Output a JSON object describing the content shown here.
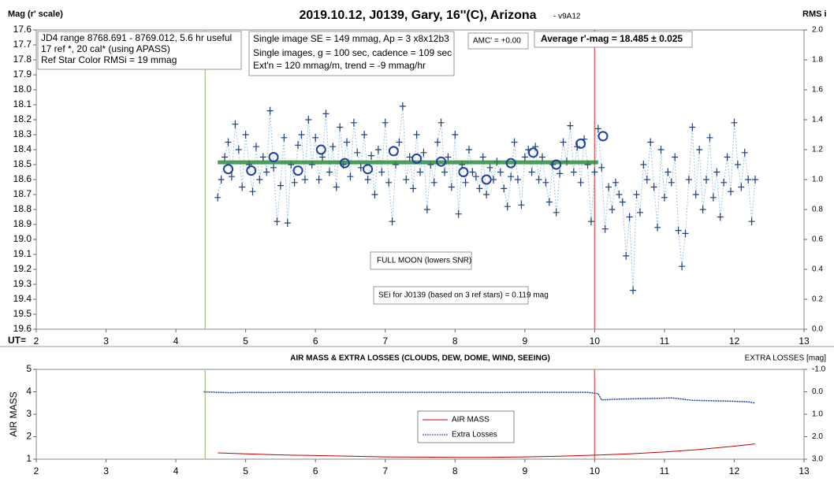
{
  "chart_data": [
    {
      "type": "scatter",
      "title": "2019.10.12, J0139, Gary, 16''(C), Arizona",
      "subtitle": "- v9A12",
      "y_label": "Mag (r' scale)",
      "y2_label": "RMS i",
      "x_label": "UT=",
      "xlim": [
        2,
        13
      ],
      "xticks": [
        2,
        3,
        4,
        5,
        6,
        7,
        8,
        9,
        10,
        11,
        12,
        13
      ],
      "ylim": [
        19.6,
        17.6
      ],
      "yticks": [
        17.6,
        17.7,
        17.8,
        17.9,
        {
          "value": 18.0,
          "label": "18.0"
        },
        18.1,
        18.2,
        18.3,
        18.4,
        18.5,
        18.6,
        18.7,
        18.8,
        18.9,
        {
          "value": 19.0,
          "label": "19.0"
        },
        19.1,
        19.2,
        19.3,
        19.4,
        19.5,
        19.6
      ],
      "y2lim": [
        0,
        2
      ],
      "y2ticks": [
        {
          "value": 0,
          "label": "0.0"
        },
        0.2,
        0.4,
        0.6,
        0.8,
        {
          "value": 1,
          "label": "1.0"
        },
        1.2,
        1.4,
        1.6,
        1.8,
        {
          "value": 2,
          "label": "2.0"
        }
      ],
      "color": "#1f3f7f",
      "line_color": "#9dc3e6",
      "x": [
        4.6,
        4.65,
        4.7,
        4.75,
        4.8,
        4.85,
        4.9,
        4.95,
        5.0,
        5.05,
        5.1,
        5.15,
        5.2,
        5.25,
        5.3,
        5.35,
        5.4,
        5.45,
        5.5,
        5.55,
        5.6,
        5.65,
        5.7,
        5.75,
        5.8,
        5.85,
        5.9,
        5.95,
        6.0,
        6.05,
        6.1,
        6.15,
        6.2,
        6.25,
        6.3,
        6.35,
        6.4,
        6.45,
        6.5,
        6.55,
        6.6,
        6.65,
        6.7,
        6.75,
        6.8,
        6.85,
        6.9,
        6.95,
        7.0,
        7.05,
        7.1,
        7.15,
        7.2,
        7.25,
        7.3,
        7.35,
        7.4,
        7.45,
        7.5,
        7.55,
        7.6,
        7.65,
        7.7,
        7.75,
        7.8,
        7.85,
        7.9,
        7.95,
        8.0,
        8.05,
        8.1,
        8.15,
        8.2,
        8.25,
        8.3,
        8.35,
        8.4,
        8.45,
        8.5,
        8.55,
        8.6,
        8.65,
        8.7,
        8.75,
        8.8,
        8.85,
        8.9,
        8.95,
        9.0,
        9.05,
        9.1,
        9.15,
        9.2,
        9.25,
        9.3,
        9.35,
        9.4,
        9.45,
        9.5,
        9.55,
        9.6,
        9.65,
        9.7,
        9.75,
        9.8,
        9.85,
        9.9,
        9.95,
        10.0,
        10.05,
        10.1,
        10.15,
        10.2,
        10.25,
        10.3,
        10.35,
        10.4,
        10.45,
        10.5,
        10.55,
        10.6,
        10.65,
        10.7,
        10.75,
        10.8,
        10.85,
        10.9,
        10.95,
        11.0,
        11.05,
        11.1,
        11.15,
        11.2,
        11.25,
        11.3,
        11.35,
        11.4,
        11.45,
        11.5,
        11.55,
        11.6,
        11.65,
        11.7,
        11.75,
        11.8,
        11.85,
        11.9,
        11.95,
        12.0,
        12.05,
        12.1,
        12.15,
        12.2,
        12.25,
        12.3
      ],
      "values": [
        18.72,
        18.6,
        18.45,
        18.35,
        18.58,
        18.23,
        18.4,
        18.65,
        18.3,
        18.5,
        18.68,
        18.38,
        18.6,
        18.45,
        18.55,
        18.14,
        18.52,
        18.88,
        18.64,
        18.32,
        18.89,
        18.5,
        18.62,
        18.37,
        18.3,
        18.6,
        18.2,
        18.5,
        18.32,
        18.6,
        18.45,
        18.16,
        18.55,
        18.38,
        18.65,
        18.25,
        18.5,
        18.35,
        18.58,
        18.22,
        18.42,
        18.52,
        18.3,
        18.6,
        18.44,
        18.7,
        18.4,
        18.55,
        18.22,
        18.62,
        18.88,
        18.5,
        18.35,
        18.11,
        18.6,
        18.45,
        18.66,
        18.3,
        18.55,
        18.42,
        18.8,
        18.5,
        18.62,
        18.35,
        18.22,
        18.55,
        18.45,
        18.65,
        18.3,
        18.83,
        18.5,
        18.62,
        18.4,
        18.55,
        18.58,
        18.66,
        18.45,
        18.7,
        18.52,
        18.6,
        18.48,
        18.55,
        18.66,
        18.78,
        18.58,
        18.35,
        18.6,
        18.77,
        18.45,
        18.4,
        18.55,
        18.38,
        18.6,
        18.45,
        18.62,
        18.75,
        18.5,
        18.82,
        18.56,
        18.35,
        18.48,
        18.24,
        18.55,
        18.38,
        18.62,
        18.33,
        18.5,
        18.88,
        18.55,
        18.26,
        18.52,
        18.93,
        18.65,
        18.8,
        18.62,
        18.7,
        18.75,
        19.11,
        18.85,
        19.34,
        18.7,
        18.82,
        18.5,
        18.6,
        18.35,
        18.65,
        18.92,
        18.4,
        18.72,
        18.55,
        18.62,
        18.45,
        18.94,
        19.18,
        18.96,
        18.6,
        18.25,
        18.7,
        18.4,
        18.8,
        18.6,
        18.32,
        18.72,
        18.55,
        18.85,
        18.62,
        18.45,
        18.68,
        18.22,
        18.5,
        18.65,
        18.42,
        18.6,
        18.88,
        18.6
      ],
      "circles": {
        "color": "#1f3f9f",
        "x": [
          4.75,
          5.08,
          5.4,
          5.75,
          6.08,
          6.42,
          6.75,
          7.12,
          7.45,
          7.8,
          8.12,
          8.45,
          8.8,
          9.12,
          9.45,
          9.8,
          10.12
        ],
        "values": [
          18.53,
          18.54,
          18.45,
          18.54,
          18.4,
          18.49,
          18.53,
          18.41,
          18.46,
          18.48,
          18.55,
          18.6,
          18.49,
          18.42,
          18.5,
          18.36,
          18.31
        ]
      },
      "average_line": {
        "value": 18.485,
        "xlim": [
          4.6,
          10.05
        ],
        "color": "#2e8b3e"
      },
      "vlines": [
        {
          "x": 4.42,
          "color": "#a9d18e"
        },
        {
          "x": 10.0,
          "color": "#e06666"
        }
      ],
      "annotations": [
        "JD4 range 8768.691 - 8769.012, 5.6 hr useful",
        "17 ref *, 20 cal* (using APASS)",
        "Ref Star Color RMSi = 19 mmag",
        "Single image SE = 149 mmag, Ap = 3 x8x12b3",
        "Single images, g = 100 sec, cadence = 109 sec",
        "Ext'n = 120 mmag/m, trend = -9 mmag/hr",
        "AMC' = +0.00",
        "Average r'-mag =  18.485 ± 0.025",
        "FULL MOON (lowers SNR)",
        "SEi for J0139 (based on 3 ref stars) = 0.119 mag"
      ]
    },
    {
      "type": "line",
      "title": "AIR MASS & EXTRA LOSSES (CLOUDS, DEW, DOME, WIND, SEEING)",
      "y_label": "AIR MASS",
      "y2_label": "EXTRA LOSSES [mag]",
      "xlim": [
        2,
        13
      ],
      "xticks": [
        2,
        3,
        4,
        5,
        6,
        7,
        8,
        9,
        10,
        11,
        12,
        13
      ],
      "ylim": [
        1,
        5
      ],
      "yticks": [
        1,
        2,
        3,
        4,
        5
      ],
      "y2lim": [
        3,
        -1
      ],
      "y2ticks": [
        {
          "value": -1,
          "label": "-1.0"
        },
        {
          "value": 0,
          "label": "0.0"
        },
        {
          "value": 1,
          "label": "1.0"
        },
        {
          "value": 2,
          "label": "2.0"
        },
        {
          "value": 3,
          "label": "3.0"
        }
      ],
      "vlines": [
        {
          "x": 4.42,
          "color": "#a9d18e"
        },
        {
          "x": 10.0,
          "color": "#e06666"
        }
      ],
      "series": [
        {
          "name": "AIR MASS",
          "color": "#c00000",
          "x": [
            4.6,
            5.0,
            5.5,
            6.0,
            6.5,
            7.0,
            7.5,
            8.0,
            8.5,
            9.0,
            9.5,
            10.0,
            10.5,
            11.0,
            11.5,
            12.0,
            12.3
          ],
          "values": [
            1.28,
            1.24,
            1.19,
            1.16,
            1.13,
            1.1,
            1.09,
            1.08,
            1.08,
            1.1,
            1.13,
            1.18,
            1.24,
            1.32,
            1.43,
            1.58,
            1.68
          ]
        },
        {
          "name": "Extra Losses",
          "color": "#1f3f9f",
          "axis": "y2",
          "x": [
            4.4,
            4.6,
            4.8,
            5.0,
            5.3,
            5.6,
            6.0,
            6.5,
            7.0,
            7.5,
            8.0,
            8.5,
            9.0,
            9.5,
            9.9,
            10.05,
            10.1,
            10.3,
            10.6,
            10.9,
            11.1,
            11.2,
            11.4,
            11.7,
            12.0,
            12.2,
            12.3
          ],
          "values": [
            0.0,
            0.02,
            0.04,
            0.02,
            0.03,
            0.02,
            0.02,
            0.03,
            0.02,
            0.02,
            0.02,
            0.03,
            0.02,
            0.02,
            0.02,
            0.08,
            0.36,
            0.33,
            0.31,
            0.29,
            0.27,
            0.3,
            0.38,
            0.4,
            0.42,
            0.45,
            0.5
          ]
        }
      ]
    }
  ]
}
